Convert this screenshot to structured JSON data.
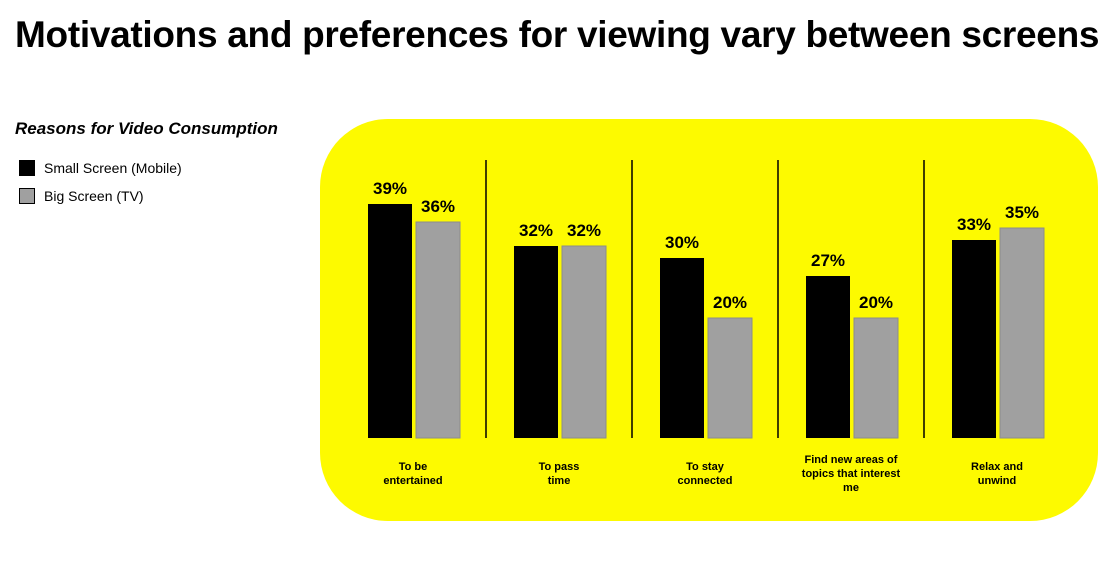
{
  "title": "Motivations and preferences for viewing vary between screens",
  "subtitle": "Reasons for Video Consumption",
  "colors": {
    "panel": "#fdfa00",
    "mobile": "#000000",
    "tv": "#a0a0a0"
  },
  "legend": [
    {
      "name": "Small Screen (Mobile)",
      "color": "#000000"
    },
    {
      "name": "Big Screen (TV)",
      "color": "#a0a0a0"
    }
  ],
  "chart_data": {
    "type": "bar",
    "categories": [
      [
        "To be",
        "entertained"
      ],
      [
        "To pass",
        "time"
      ],
      [
        "To stay",
        "connected"
      ],
      [
        "Find new areas of",
        "topics that interest",
        "me"
      ],
      [
        "Relax and",
        "unwind"
      ]
    ],
    "series": [
      {
        "name": "Small Screen (Mobile)",
        "values": [
          39,
          32,
          30,
          27,
          33
        ]
      },
      {
        "name": "Big Screen (TV)",
        "values": [
          36,
          32,
          20,
          20,
          35
        ]
      }
    ],
    "unit": "%",
    "ylim": [
      0,
      45
    ],
    "legend_position": "top-left",
    "grid": false
  }
}
